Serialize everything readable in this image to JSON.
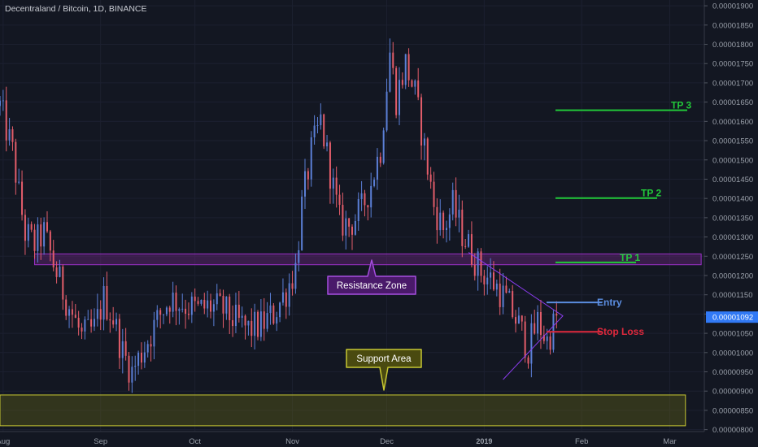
{
  "header": {
    "title": "Decentraland / Bitcoin, 1D, BINANCE"
  },
  "chart_data": {
    "type": "candlestick",
    "title": "Decentraland / Bitcoin, 1D, BINANCE",
    "ylim": [
      7.95e-06,
      1.915e-05
    ],
    "y_ticks": [
      "0.00001900",
      "0.00001850",
      "0.00001800",
      "0.00001750",
      "0.00001700",
      "0.00001650",
      "0.00001600",
      "0.00001550",
      "0.00001500",
      "0.00001450",
      "0.00001400",
      "0.00001350",
      "0.00001300",
      "0.00001250",
      "0.00001200",
      "0.00001150",
      "0.00001100",
      "0.00001050",
      "0.00001000",
      "0.00000950",
      "0.00000900",
      "0.00000850",
      "0.00000800"
    ],
    "x_ticks": [
      {
        "label": "Aug",
        "date": "2018-08-01"
      },
      {
        "label": "Sep",
        "date": "2018-09-01"
      },
      {
        "label": "Oct",
        "date": "2018-10-01"
      },
      {
        "label": "Nov",
        "date": "2018-11-01"
      },
      {
        "label": "Dec",
        "date": "2018-12-01"
      },
      {
        "label": "2019",
        "date": "2019-01-01",
        "bold": true
      },
      {
        "label": "Feb",
        "date": "2019-02-01"
      },
      {
        "label": "Mar",
        "date": "2019-03-01"
      }
    ],
    "xlim": [
      "2018-07-31",
      "2019-03-12"
    ],
    "last_price": "0.00001092",
    "colors": {
      "up": "#5b7fd6",
      "down": "#e35d6a",
      "background": "#131722",
      "last_price": "#3179f5"
    },
    "anchors": [
      [
        "2018-07-31",
        1.64e-05
      ],
      [
        "2018-08-02",
        1.58e-05
      ],
      [
        "2018-08-04",
        1.52e-05
      ],
      [
        "2018-08-06",
        1.41e-05
      ],
      [
        "2018-08-08",
        1.31e-05
      ],
      [
        "2018-08-11",
        1.28e-05
      ],
      [
        "2018-08-14",
        1.31e-05
      ],
      [
        "2018-08-17",
        1.23e-05
      ],
      [
        "2018-08-20",
        1.16e-05
      ],
      [
        "2018-08-23",
        1.1e-05
      ],
      [
        "2018-08-26",
        1.04e-05
      ],
      [
        "2018-08-30",
        1.06e-05
      ],
      [
        "2018-09-02",
        1.14e-05
      ],
      [
        "2018-09-05",
        1.09e-05
      ],
      [
        "2018-09-08",
        1e-05
      ],
      [
        "2018-09-11",
        9.5e-06
      ],
      [
        "2018-09-14",
        1e-05
      ],
      [
        "2018-09-17",
        1.05e-05
      ],
      [
        "2018-09-20",
        1.1e-05
      ],
      [
        "2018-09-23",
        1.14e-05
      ],
      [
        "2018-09-26",
        1.13e-05
      ],
      [
        "2018-09-29",
        1.12e-05
      ],
      [
        "2018-10-02",
        1.11e-05
      ],
      [
        "2018-10-06",
        1.12e-05
      ],
      [
        "2018-10-10",
        1.11e-05
      ],
      [
        "2018-10-14",
        1.08e-05
      ],
      [
        "2018-10-18",
        1.06e-05
      ],
      [
        "2018-10-22",
        1.07e-05
      ],
      [
        "2018-10-26",
        1.1e-05
      ],
      [
        "2018-10-30",
        1.16e-05
      ],
      [
        "2018-11-02",
        1.22e-05
      ],
      [
        "2018-11-04",
        1.38e-05
      ],
      [
        "2018-11-07",
        1.52e-05
      ],
      [
        "2018-11-10",
        1.6e-05
      ],
      [
        "2018-11-13",
        1.47e-05
      ],
      [
        "2018-11-16",
        1.34e-05
      ],
      [
        "2018-11-19",
        1.33e-05
      ],
      [
        "2018-11-23",
        1.37e-05
      ],
      [
        "2018-11-26",
        1.44e-05
      ],
      [
        "2018-11-29",
        1.53e-05
      ],
      [
        "2018-12-02",
        1.78e-05
      ],
      [
        "2018-12-04",
        1.66e-05
      ],
      [
        "2018-12-07",
        1.75e-05
      ],
      [
        "2018-12-10",
        1.67e-05
      ],
      [
        "2018-12-13",
        1.53e-05
      ],
      [
        "2018-12-16",
        1.38e-05
      ],
      [
        "2018-12-19",
        1.32e-05
      ],
      [
        "2018-12-22",
        1.38e-05
      ],
      [
        "2018-12-25",
        1.31e-05
      ],
      [
        "2018-12-28",
        1.26e-05
      ],
      [
        "2018-12-31",
        1.21e-05
      ],
      [
        "2019-01-03",
        1.19e-05
      ],
      [
        "2019-01-06",
        1.16e-05
      ],
      [
        "2019-01-09",
        1.12e-05
      ],
      [
        "2019-01-12",
        1.07e-05
      ],
      [
        "2019-01-15",
        1.01e-05
      ],
      [
        "2019-01-18",
        1.08e-05
      ],
      [
        "2019-01-21",
        1.03e-05
      ],
      [
        "2019-01-24",
        1.09e-05
      ]
    ],
    "annotations": {
      "resistance_zone": {
        "label": "Resistance Zone",
        "y_range": [
          1.228e-05,
          1.256e-05
        ],
        "x_range": [
          "2018-08-11",
          "2019-03-11"
        ]
      },
      "support_area": {
        "label": "Support Area",
        "y_range": [
          8.1e-06,
          8.9e-06
        ],
        "x_range": [
          "2018-07-31",
          "2019-03-06"
        ]
      },
      "levels": [
        {
          "label": "TP 3",
          "value": 1.629e-05,
          "color": "#22c93a"
        },
        {
          "label": "TP 2",
          "value": 1.401e-05,
          "color": "#22c93a"
        },
        {
          "label": "TP 1",
          "value": 1.234e-05,
          "color": "#22c93a"
        },
        {
          "label": "Entry",
          "value": 1.13e-05,
          "color": "#5b8de0"
        },
        {
          "label": "Stop Loss",
          "value": 1.054e-05,
          "color": "#e0283c"
        }
      ]
    }
  }
}
